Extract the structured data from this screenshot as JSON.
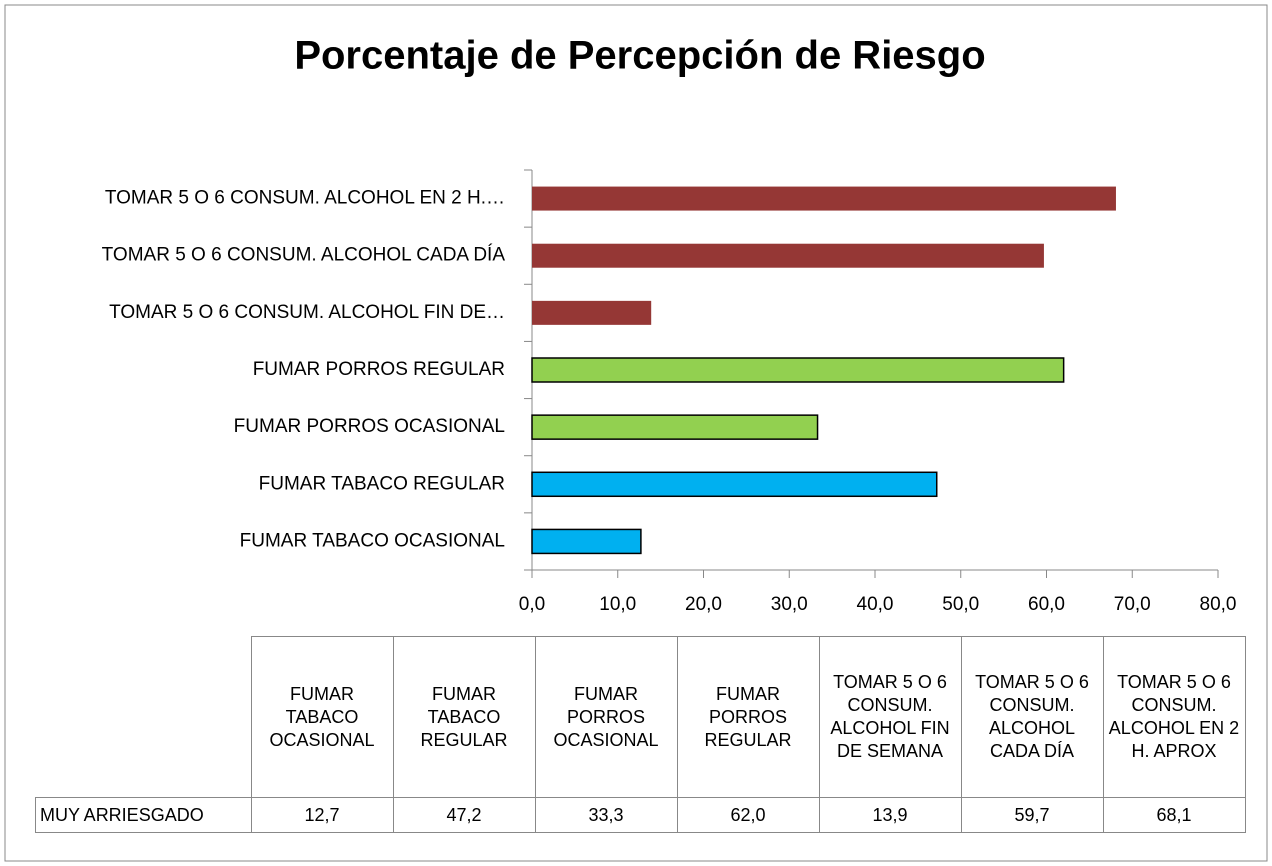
{
  "chart_data": {
    "type": "bar",
    "orientation": "horizontal",
    "title": "Porcentaje de Percepción de Riesgo",
    "categories": [
      "FUMAR TABACO OCASIONAL",
      "FUMAR TABACO REGULAR",
      "FUMAR PORROS OCASIONAL",
      "FUMAR PORROS REGULAR",
      "TOMAR 5 O 6 CONSUM. ALCOHOL FIN DE SEMANA",
      "TOMAR 5 O 6 CONSUM. ALCOHOL CADA DÍA",
      "TOMAR 5 O 6 CONSUM. ALCOHOL EN 2 H. APROX"
    ],
    "category_axis_labels": [
      "FUMAR TABACO OCASIONAL",
      "FUMAR TABACO REGULAR",
      "FUMAR PORROS OCASIONAL",
      "FUMAR PORROS REGULAR",
      "TOMAR 5 O 6 CONSUM. ALCOHOL FIN DE…",
      "TOMAR 5 O 6 CONSUM. ALCOHOL CADA DÍA",
      "TOMAR 5 O 6 CONSUM. ALCOHOL EN 2 H.…"
    ],
    "series": [
      {
        "name": "MUY ARRIESGADO",
        "values": [
          12.7,
          47.2,
          33.3,
          62.0,
          13.9,
          59.7,
          68.1
        ],
        "value_labels": [
          "12,7",
          "47,2",
          "33,3",
          "62,0",
          "13,9",
          "59,7",
          "68,1"
        ],
        "colors": [
          "#00b0f0",
          "#00b0f0",
          "#92d050",
          "#92d050",
          "#953735",
          "#953735",
          "#953735"
        ],
        "outlined": [
          true,
          true,
          true,
          true,
          false,
          false,
          false
        ]
      }
    ],
    "xlim": [
      0,
      80
    ],
    "xticks": [
      {
        "value": 0,
        "label": "0,0"
      },
      {
        "value": 10,
        "label": "10,0"
      },
      {
        "value": 20,
        "label": "20,0"
      },
      {
        "value": 30,
        "label": "30,0"
      },
      {
        "value": 40,
        "label": "40,0"
      },
      {
        "value": 50,
        "label": "50,0"
      },
      {
        "value": 60,
        "label": "60,0"
      },
      {
        "value": 70,
        "label": "70,0"
      },
      {
        "value": 80,
        "label": "80,0"
      }
    ],
    "grid": false,
    "data_table": true
  }
}
